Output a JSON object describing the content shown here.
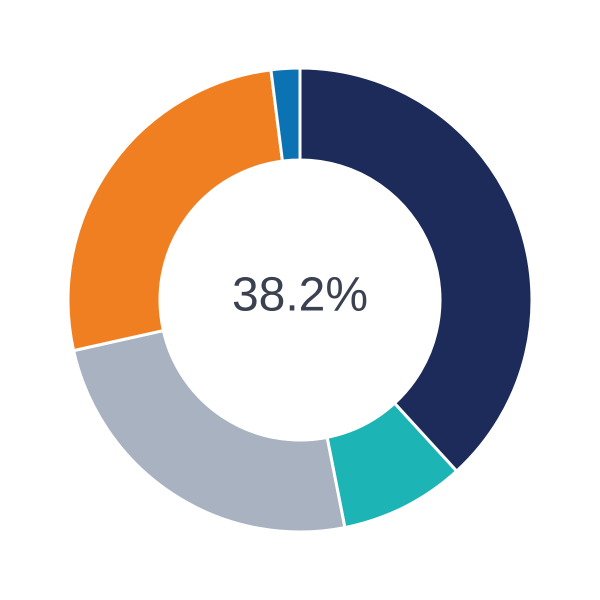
{
  "chart_data": {
    "type": "donut",
    "center_label": "38.2%",
    "values": [
      38.2,
      8.7,
      24.6,
      26.5,
      2.0
    ],
    "colors": [
      "#1c2b5a",
      "#1db4b6",
      "#a8b2c1",
      "#f07f22",
      "#0b72b4"
    ]
  }
}
